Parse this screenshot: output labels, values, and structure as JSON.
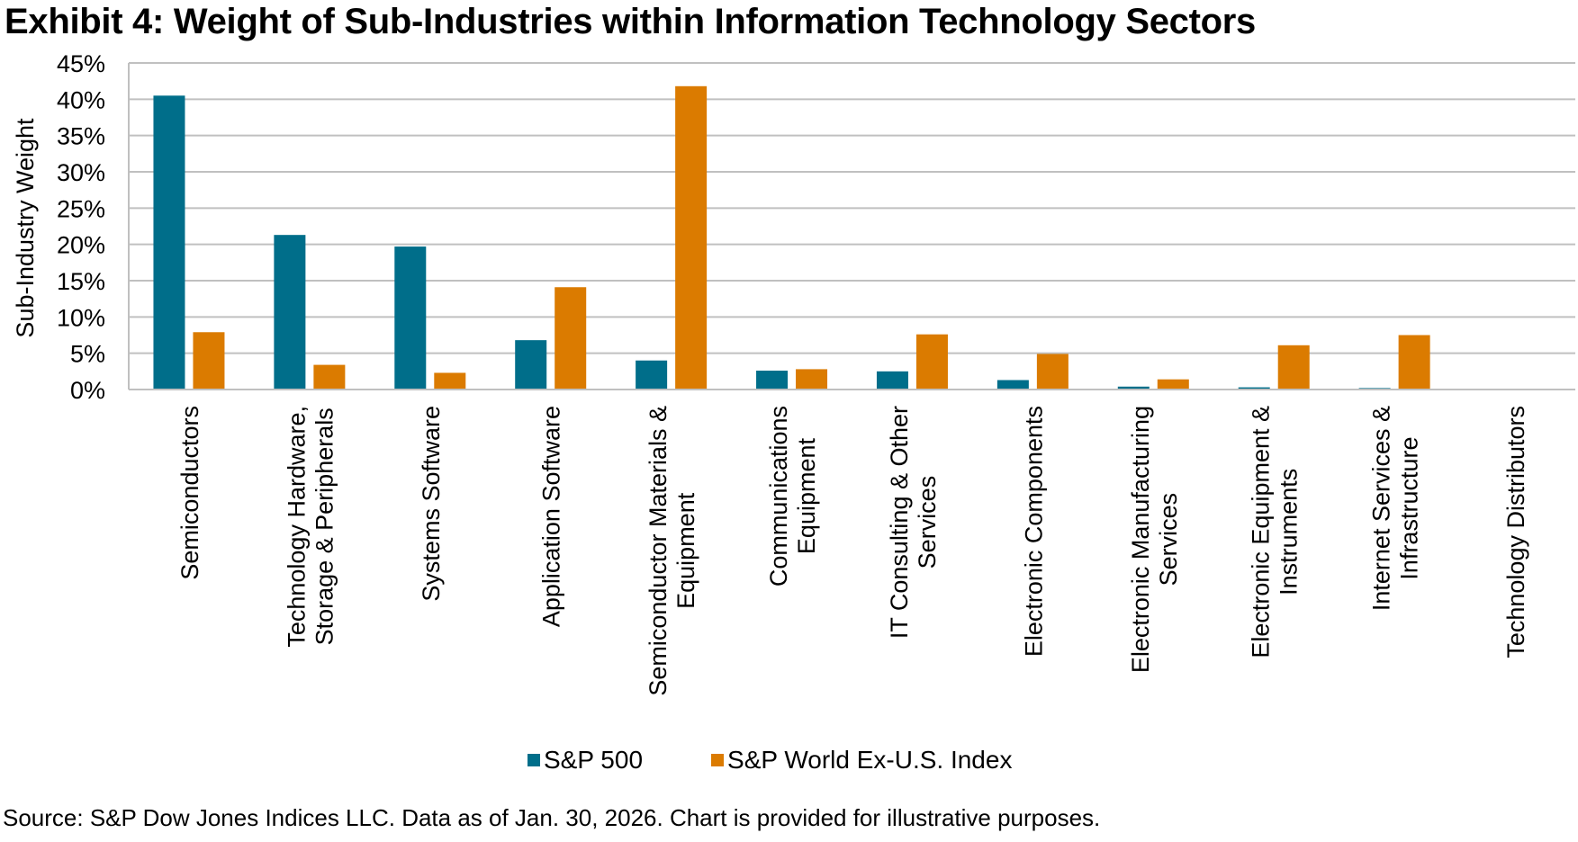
{
  "chart_data": {
    "type": "bar",
    "title": "Exhibit 4: Weight of Sub-Industries within Information Technology Sectors",
    "xlabel": "",
    "ylabel": "Sub-Industry Weight",
    "ylim": [
      0,
      45
    ],
    "yticks": [
      0,
      5,
      10,
      15,
      20,
      25,
      30,
      35,
      40,
      45
    ],
    "ytick_labels": [
      "0%",
      "5%",
      "10%",
      "15%",
      "20%",
      "25%",
      "30%",
      "35%",
      "40%",
      "45%"
    ],
    "grid": true,
    "legend_position": "bottom",
    "categories": [
      "Semiconductors",
      "Technology Hardware, Storage & Peripherals",
      "Systems Software",
      "Application Software",
      "Semiconductor Materials & Equipment",
      "Communications Equipment",
      "IT Consulting & Other Services",
      "Electronic Components",
      "Electronic Manufacturing Services",
      "Electronic Equipment & Instruments",
      "Internet Services & Infrastructure",
      "Technology Distributors"
    ],
    "category_label_lines": [
      [
        "Semiconductors"
      ],
      [
        "Technology Hardware,",
        "Storage & Peripherals"
      ],
      [
        "Systems Software"
      ],
      [
        "Application Software"
      ],
      [
        "Semiconductor Materials &",
        "Equipment"
      ],
      [
        "Communications",
        "Equipment"
      ],
      [
        "IT Consulting & Other",
        "Services"
      ],
      [
        "Electronic Components"
      ],
      [
        "Electronic Manufacturing",
        "Services"
      ],
      [
        "Electronic Equipment &",
        "Instruments"
      ],
      [
        "Internet Services &",
        "Infrastructure"
      ],
      [
        "Technology Distributors"
      ]
    ],
    "series": [
      {
        "name": "S&P 500",
        "color": "#006E8A",
        "values": [
          40.5,
          21.3,
          19.7,
          6.8,
          4.0,
          2.6,
          2.5,
          1.3,
          0.4,
          0.3,
          0.2,
          0.0
        ]
      },
      {
        "name": "S&P World Ex-U.S. Index",
        "color": "#DB7B00",
        "values": [
          7.9,
          3.4,
          2.3,
          14.1,
          41.8,
          2.8,
          7.6,
          4.9,
          1.4,
          6.1,
          7.5,
          0.0
        ]
      }
    ]
  },
  "legend": {
    "items": [
      {
        "label": "S&P 500",
        "color": "#006E8A"
      },
      {
        "label": "S&P World Ex-U.S. Index",
        "color": "#DB7B00"
      }
    ]
  },
  "source": "Source: S&P Dow Jones Indices LLC. Data as of Jan. 30, 2026. Chart is provided for illustrative purposes."
}
